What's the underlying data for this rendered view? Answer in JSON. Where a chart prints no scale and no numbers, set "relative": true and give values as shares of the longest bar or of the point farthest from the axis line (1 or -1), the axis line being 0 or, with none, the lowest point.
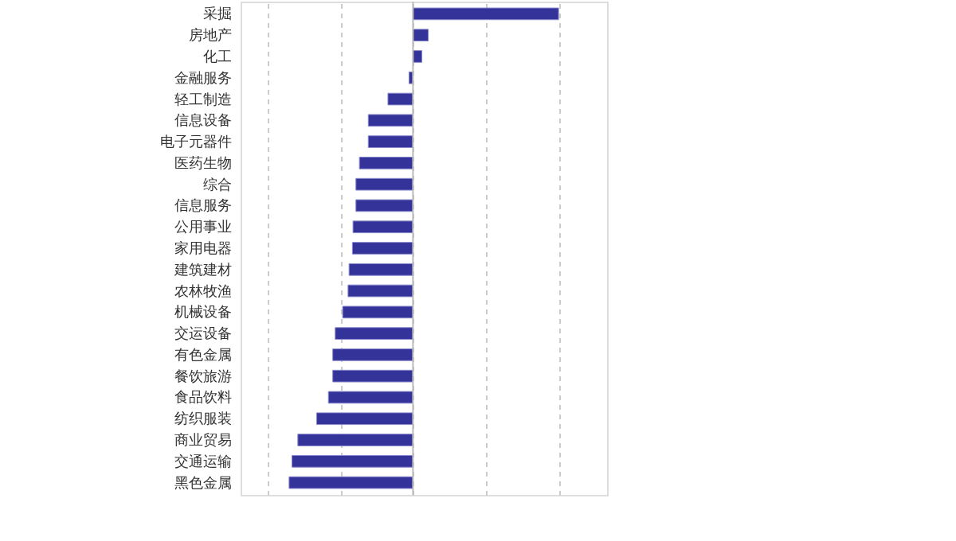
{
  "chart_data": {
    "type": "bar",
    "orientation": "horizontal",
    "relative": true,
    "grid": "x",
    "color": "#33339a",
    "categories": [
      "采掘",
      "房地产",
      "化工",
      "金融服务",
      "轻工制造",
      "信息设备",
      "电子元器件",
      "医药生物",
      "综合",
      "信息服务",
      "公用事业",
      "家用电器",
      "建筑建材",
      "农林牧渔",
      "机械设备",
      "交运设备",
      "有色金属",
      "餐饮旅游",
      "食品饮料",
      "纺织服装",
      "商业贸易",
      "交通运输",
      "黑色金属"
    ],
    "values": [
      1,
      0.105,
      0.061,
      -0.027,
      -0.172,
      -0.307,
      -0.307,
      -0.368,
      -0.392,
      -0.392,
      -0.412,
      -0.416,
      -0.439,
      -0.446,
      -0.483,
      -0.534,
      -0.551,
      -0.551,
      -0.581,
      -0.662,
      -0.791,
      -0.831,
      -0.851
    ]
  }
}
